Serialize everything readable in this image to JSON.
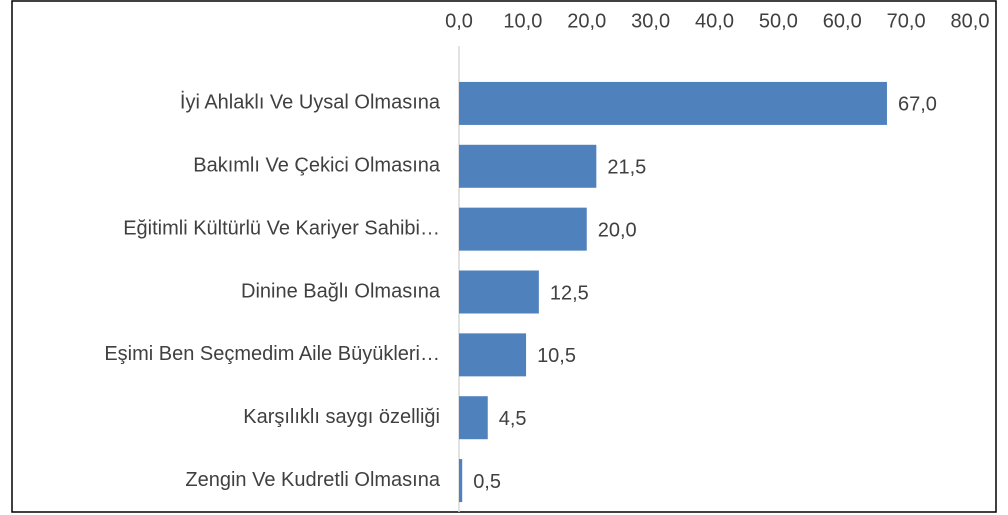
{
  "chart_data": {
    "type": "bar",
    "orientation": "horizontal",
    "color": "#4f81bd",
    "categories": [
      "İyi Ahlaklı Ve Uysal Olmasına",
      "Bakımlı Ve Çekici Olmasına",
      "Eğitimli Kültürlü Ve Kariyer Sahibi…",
      "Dinine Bağlı Olmasına",
      "Eşimi Ben Seçmedim Aile Büyükleri…",
      "Karşılıklı saygı özelliği",
      "Zengin Ve Kudretli Olmasına"
    ],
    "values": [
      67.0,
      21.5,
      20.0,
      12.5,
      10.5,
      4.5,
      0.5
    ],
    "value_labels": [
      "67,0",
      "21,5",
      "20,0",
      "12,5",
      "10,5",
      "4,5",
      "0,5"
    ],
    "xlim": [
      0,
      80
    ],
    "xticks": [
      {
        "value": 0,
        "label": "0,0"
      },
      {
        "value": 10,
        "label": "10,0"
      },
      {
        "value": 20,
        "label": "20,0"
      },
      {
        "value": 30,
        "label": "30,0"
      },
      {
        "value": 40,
        "label": "40,0"
      },
      {
        "value": 50,
        "label": "50,0"
      },
      {
        "value": 60,
        "label": "60,0"
      },
      {
        "value": 70,
        "label": "70,0"
      },
      {
        "value": 80,
        "label": "80,0"
      }
    ]
  }
}
